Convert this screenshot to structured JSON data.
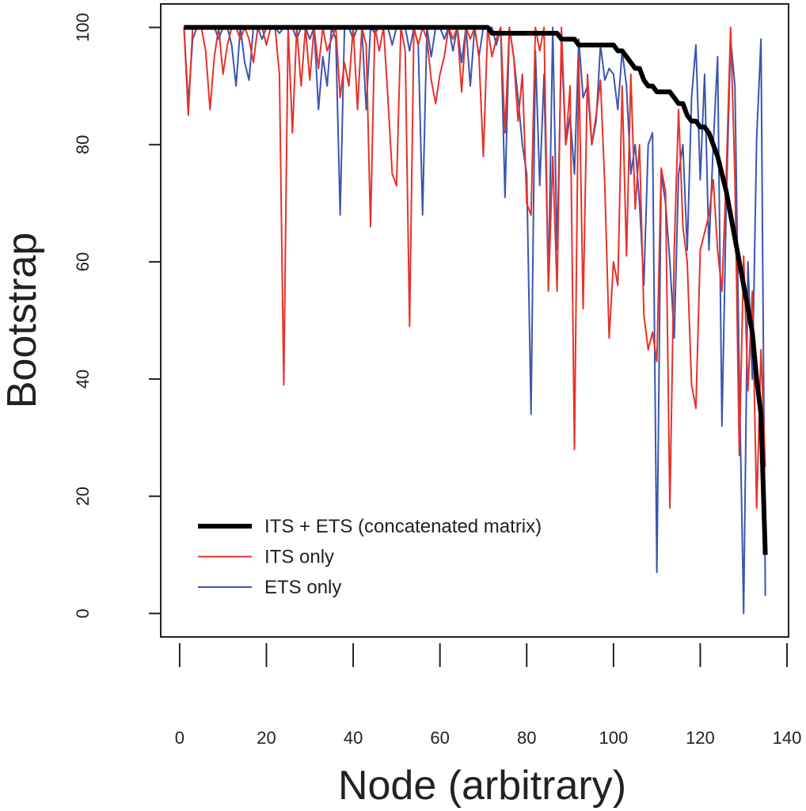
{
  "chart_data": {
    "type": "line",
    "x_label": "Node (arbitrary)",
    "y_label": "Bootstrap",
    "x": [
      1,
      2,
      3,
      4,
      5,
      6,
      7,
      8,
      9,
      10,
      11,
      12,
      13,
      14,
      15,
      16,
      17,
      18,
      19,
      20,
      21,
      22,
      23,
      24,
      25,
      26,
      27,
      28,
      29,
      30,
      31,
      32,
      33,
      34,
      35,
      36,
      37,
      38,
      39,
      40,
      41,
      42,
      43,
      44,
      45,
      46,
      47,
      48,
      49,
      50,
      51,
      52,
      53,
      54,
      55,
      56,
      57,
      58,
      59,
      60,
      61,
      62,
      63,
      64,
      65,
      66,
      67,
      68,
      69,
      70,
      71,
      72,
      73,
      74,
      75,
      76,
      77,
      78,
      79,
      80,
      81,
      82,
      83,
      84,
      85,
      86,
      87,
      88,
      89,
      90,
      91,
      92,
      93,
      94,
      95,
      96,
      97,
      98,
      99,
      100,
      101,
      102,
      103,
      104,
      105,
      106,
      107,
      108,
      109,
      110,
      111,
      112,
      113,
      114,
      115,
      116,
      117,
      118,
      119,
      120,
      121,
      122,
      123,
      124,
      125,
      126,
      127,
      128,
      129,
      130,
      131,
      132,
      133,
      134,
      135
    ],
    "series": [
      {
        "name": "ITS + ETS (concatenated matrix)",
        "color": "#000000",
        "width": 6,
        "values": [
          100,
          100,
          100,
          100,
          100,
          100,
          100,
          100,
          100,
          100,
          100,
          100,
          100,
          100,
          100,
          100,
          100,
          100,
          100,
          100,
          100,
          100,
          100,
          100,
          100,
          100,
          100,
          100,
          100,
          100,
          100,
          100,
          100,
          100,
          100,
          100,
          100,
          100,
          100,
          100,
          100,
          100,
          100,
          100,
          100,
          100,
          100,
          100,
          100,
          100,
          100,
          100,
          100,
          100,
          100,
          100,
          100,
          100,
          100,
          100,
          100,
          100,
          100,
          100,
          100,
          100,
          100,
          100,
          100,
          100,
          100,
          99,
          99,
          99,
          99,
          99,
          99,
          99,
          99,
          99,
          99,
          99,
          99,
          99,
          99,
          99,
          99,
          98,
          98,
          98,
          98,
          97,
          97,
          97,
          97,
          97,
          97,
          97,
          97,
          97,
          96,
          96,
          95,
          94,
          93,
          93,
          91,
          90,
          90,
          89,
          89,
          89,
          89,
          88,
          87,
          87,
          85,
          84,
          84,
          83,
          83,
          82,
          80,
          78,
          75,
          72,
          68,
          64,
          60,
          56,
          52,
          48,
          40,
          34,
          10
        ]
      },
      {
        "name": "ITS only",
        "color": "#e8312a",
        "width": 2,
        "values": [
          100,
          85,
          100,
          100,
          100,
          96,
          86,
          95,
          100,
          92,
          97,
          100,
          100,
          98,
          100,
          98,
          94,
          100,
          100,
          97,
          100,
          100,
          92,
          39,
          100,
          82,
          100,
          90,
          100,
          91,
          100,
          93,
          100,
          96,
          98,
          100,
          88,
          94,
          90,
          100,
          86,
          100,
          97,
          66,
          100,
          96,
          100,
          88,
          75,
          73,
          100,
          96,
          49,
          100,
          97,
          100,
          98,
          91,
          87,
          92,
          95,
          100,
          98,
          100,
          89,
          100,
          98,
          100,
          95,
          78,
          100,
          95,
          98,
          100,
          82,
          100,
          95,
          84,
          92,
          70,
          68,
          100,
          96,
          100,
          55,
          78,
          55,
          100,
          80,
          90,
          28,
          95,
          52,
          92,
          80,
          85,
          91,
          73,
          47,
          60,
          56,
          90,
          61,
          92,
          69,
          80,
          51,
          45,
          48,
          43,
          76,
          72,
          18,
          62,
          86,
          66,
          60,
          39,
          35,
          62,
          65,
          68,
          74,
          62,
          55,
          75,
          100,
          74,
          27,
          61,
          38,
          55,
          18,
          45,
          25
        ]
      },
      {
        "name": "ETS only",
        "color": "#3a56b0",
        "width": 2,
        "values": [
          100,
          87,
          98,
          100,
          100,
          100,
          100,
          100,
          98,
          100,
          100,
          97,
          90,
          100,
          94,
          91,
          100,
          100,
          98,
          100,
          100,
          100,
          99,
          100,
          100,
          100,
          98,
          100,
          100,
          98,
          100,
          86,
          95,
          90,
          100,
          98,
          68,
          100,
          100,
          98,
          100,
          100,
          86,
          100,
          99,
          100,
          100,
          100,
          97,
          100,
          100,
          100,
          96,
          100,
          97,
          68,
          100,
          95,
          100,
          100,
          98,
          100,
          96,
          100,
          94,
          100,
          90,
          100,
          95,
          100,
          100,
          100,
          97,
          100,
          71,
          100,
          95,
          88,
          80,
          75,
          34,
          96,
          73,
          92,
          56,
          100,
          62,
          97,
          80,
          85,
          75,
          98,
          88,
          90,
          80,
          84,
          97,
          91,
          93,
          92,
          86,
          96,
          90,
          75,
          80,
          70,
          56,
          80,
          82,
          7,
          75,
          70,
          60,
          47,
          75,
          80,
          62,
          88,
          97,
          74,
          92,
          62,
          80,
          95,
          32,
          70,
          98,
          90,
          40,
          0,
          60,
          40,
          81,
          98,
          3
        ]
      }
    ],
    "xlim": [
      -4.36,
      140.36
    ],
    "ylim": [
      -4,
      104
    ],
    "xticks": [
      0,
      20,
      40,
      60,
      80,
      100,
      120,
      140
    ],
    "yticks": [
      0,
      20,
      40,
      60,
      80,
      100
    ],
    "legend": "bottom-left",
    "grid": false
  }
}
